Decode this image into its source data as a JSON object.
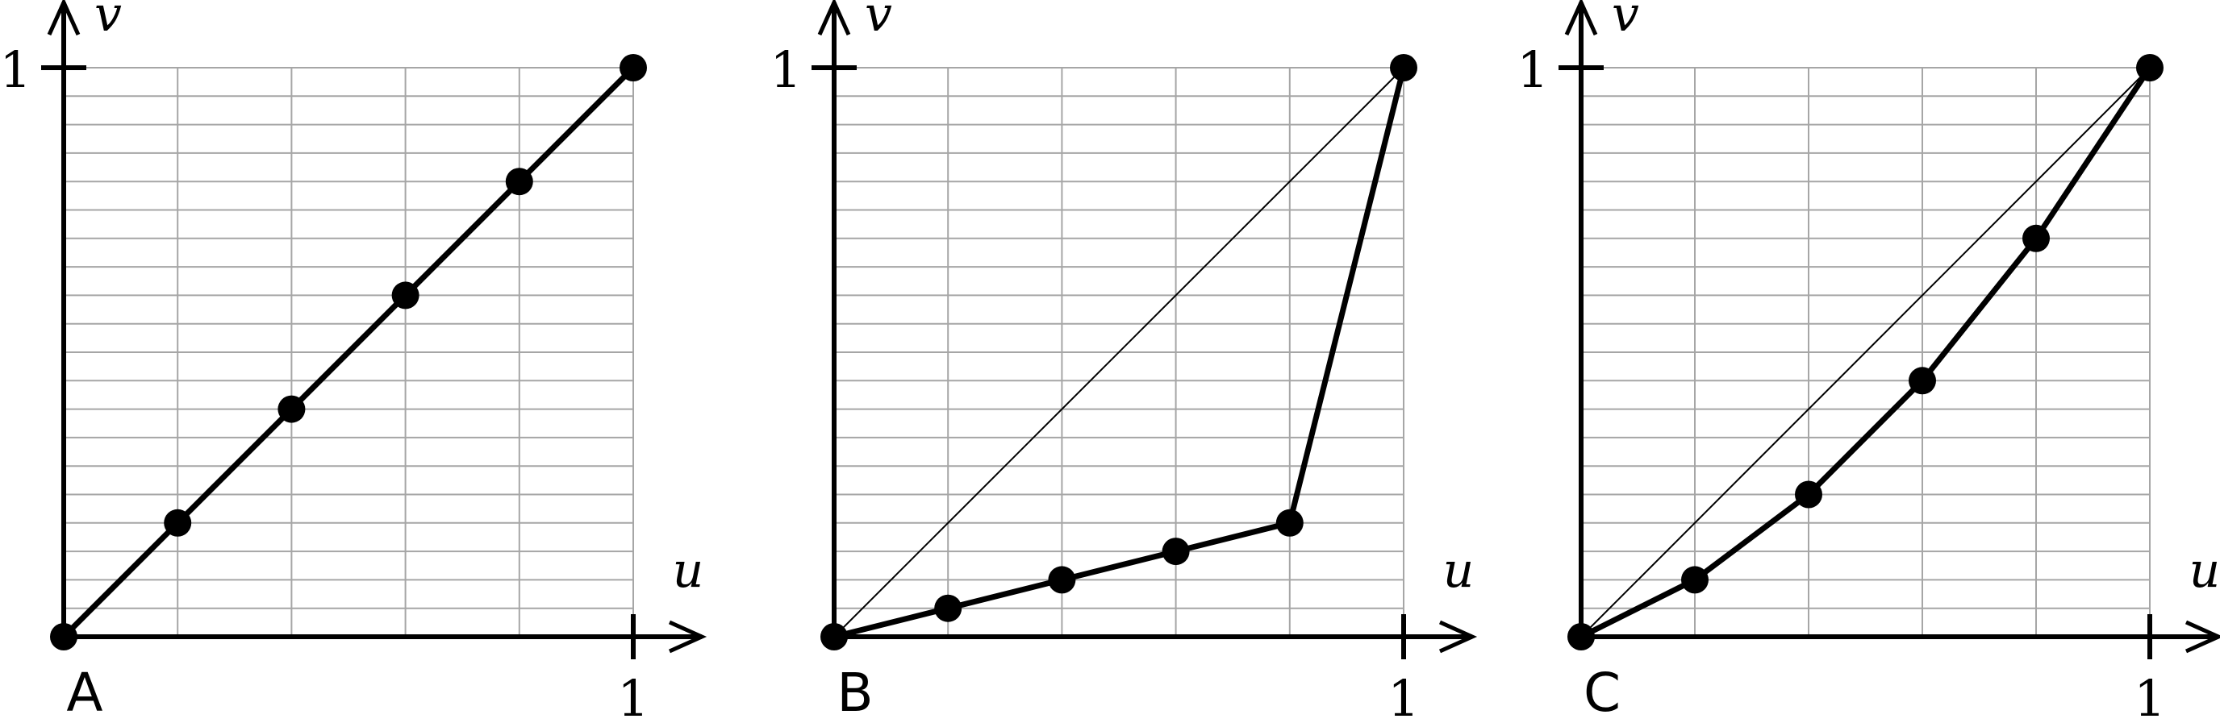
{
  "chart_data": [
    {
      "type": "line",
      "panel_label": "A",
      "xlabel": "u",
      "ylabel": "v",
      "xlim": [
        0,
        1
      ],
      "ylim": [
        0,
        1
      ],
      "x_tick_label": "1",
      "y_tick_label": "1",
      "grid": true,
      "grid_x_step": 0.2,
      "grid_y_step": 0.05,
      "show_diagonal": false,
      "series": [
        {
          "x": [
            0,
            0.2,
            0.4,
            0.6,
            0.8,
            1.0
          ],
          "y": [
            0,
            0.2,
            0.4,
            0.6,
            0.8,
            1.0
          ]
        }
      ]
    },
    {
      "type": "line",
      "panel_label": "B",
      "xlabel": "u",
      "ylabel": "v",
      "xlim": [
        0,
        1
      ],
      "ylim": [
        0,
        1
      ],
      "x_tick_label": "1",
      "y_tick_label": "1",
      "grid": true,
      "grid_x_step": 0.2,
      "grid_y_step": 0.05,
      "show_diagonal": true,
      "series": [
        {
          "x": [
            0,
            0.2,
            0.4,
            0.6,
            0.8,
            1.0
          ],
          "y": [
            0,
            0.05,
            0.1,
            0.15,
            0.2,
            1.0
          ]
        }
      ]
    },
    {
      "type": "line",
      "panel_label": "C",
      "xlabel": "u",
      "ylabel": "v",
      "xlim": [
        0,
        1
      ],
      "ylim": [
        0,
        1
      ],
      "x_tick_label": "1",
      "y_tick_label": "1",
      "grid": true,
      "grid_x_step": 0.2,
      "grid_y_step": 0.05,
      "show_diagonal": true,
      "series": [
        {
          "x": [
            0,
            0.2,
            0.4,
            0.6,
            0.8,
            1.0
          ],
          "y": [
            0,
            0.1,
            0.25,
            0.45,
            0.7,
            1.0
          ]
        }
      ]
    }
  ]
}
